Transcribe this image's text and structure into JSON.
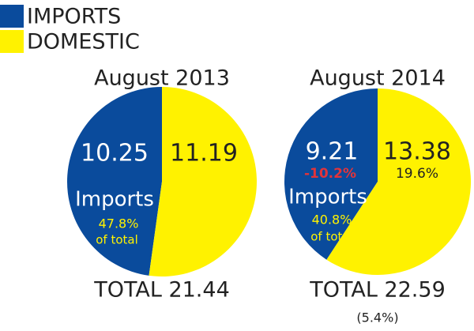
{
  "legend": {
    "items": [
      {
        "name": "IMPORTS",
        "color": "#0a4b9c"
      },
      {
        "name": "DOMESTIC",
        "color": "#fff200"
      }
    ]
  },
  "chart_data": [
    {
      "type": "pie",
      "title": "August 2013",
      "values": [
        10.25,
        11.19
      ],
      "annotations": {
        "share_label": "Imports",
        "share": "47.8%",
        "share_note": "of total",
        "total": "TOTAL 21.44"
      }
    },
    {
      "type": "pie",
      "title": "August 2014",
      "values": [
        9.21,
        13.38
      ],
      "annotations": {
        "share_label": "Imports",
        "share": "40.8%",
        "share_note": "of total",
        "total": "TOTAL 22.59",
        "import_change": "-10.2%",
        "domestic_change": "19.6%",
        "total_change": "(5.4%)"
      }
    }
  ]
}
